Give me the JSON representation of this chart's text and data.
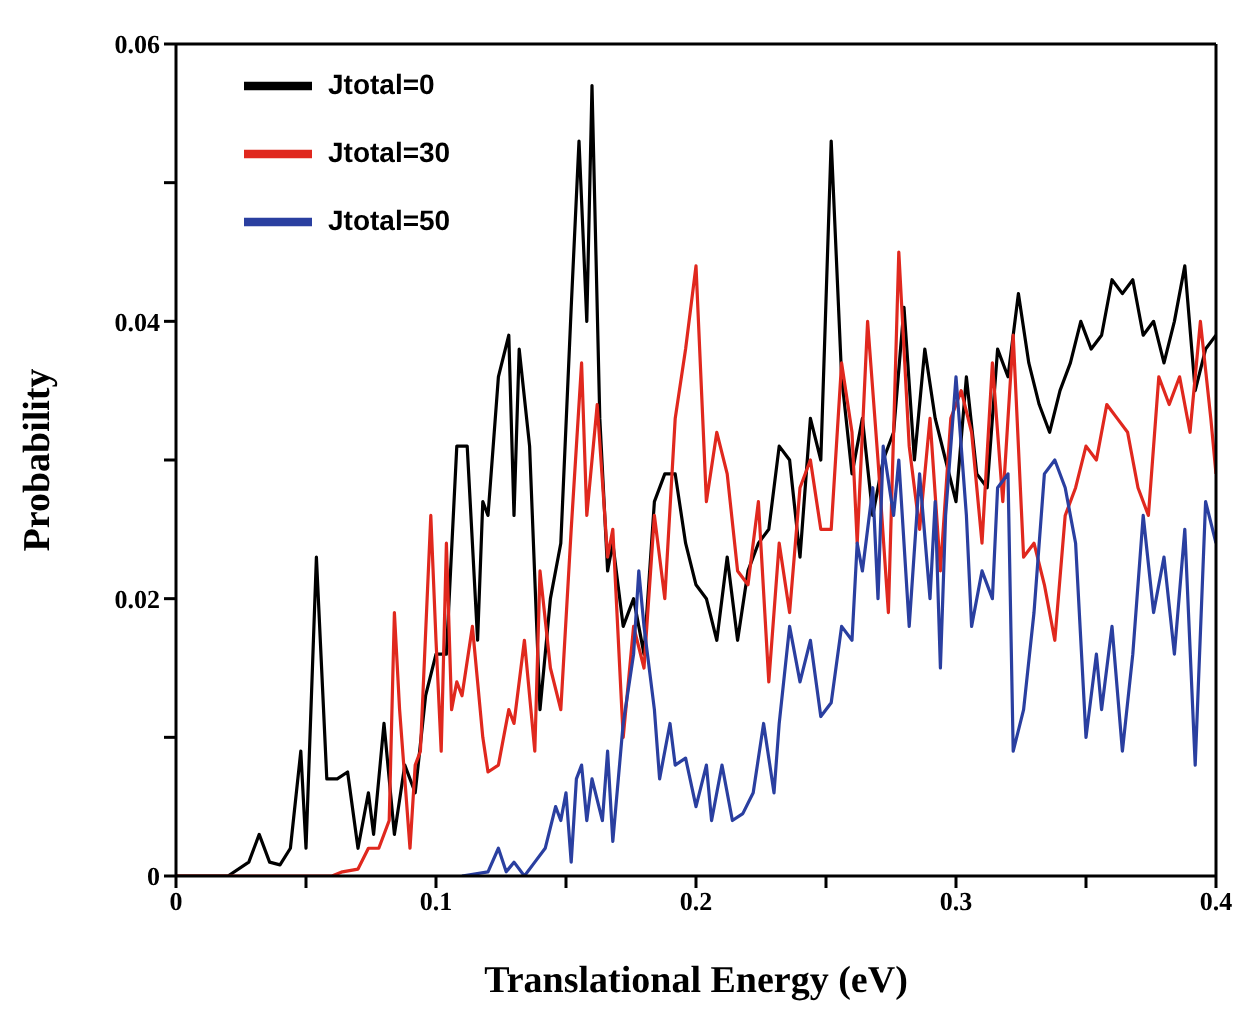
{
  "chart_data": {
    "type": "line",
    "xlabel": "Translational Energy (eV)",
    "ylabel": "Probability",
    "xlim": [
      0,
      0.4
    ],
    "ylim": [
      0,
      0.06
    ],
    "xticks": [
      0,
      {
        "value": 0.05,
        "label": null
      },
      0.1,
      {
        "value": 0.15,
        "label": null
      },
      0.2,
      {
        "value": 0.25,
        "label": null
      },
      0.3,
      {
        "value": 0.35,
        "label": null
      },
      0.4
    ],
    "yticks": [
      0,
      {
        "value": 0.01,
        "label": null
      },
      0.02,
      {
        "value": 0.03,
        "label": null
      },
      0.04,
      {
        "value": 0.05,
        "label": null
      },
      0.06
    ],
    "legend": "top left",
    "grid": false,
    "marker": "none",
    "line_style": "solid",
    "series": [
      {
        "name": "Jtotal=0",
        "color": "#000000",
        "x": [
          0,
          0.02,
          0.028,
          0.032,
          0.036,
          0.04,
          0.044,
          0.048,
          0.05,
          0.054,
          0.058,
          0.062,
          0.066,
          0.07,
          0.074,
          0.076,
          0.08,
          0.084,
          0.088,
          0.092,
          0.096,
          0.1,
          0.104,
          0.108,
          0.112,
          0.116,
          0.118,
          0.12,
          0.124,
          0.128,
          0.13,
          0.132,
          0.136,
          0.14,
          0.144,
          0.148,
          0.152,
          0.155,
          0.158,
          0.16,
          0.163,
          0.166,
          0.168,
          0.172,
          0.176,
          0.18,
          0.184,
          0.188,
          0.192,
          0.196,
          0.2,
          0.204,
          0.208,
          0.212,
          0.216,
          0.22,
          0.224,
          0.228,
          0.232,
          0.236,
          0.24,
          0.244,
          0.248,
          0.252,
          0.256,
          0.26,
          0.264,
          0.268,
          0.272,
          0.276,
          0.28,
          0.284,
          0.288,
          0.292,
          0.296,
          0.3,
          0.304,
          0.308,
          0.312,
          0.316,
          0.32,
          0.324,
          0.328,
          0.332,
          0.336,
          0.34,
          0.344,
          0.348,
          0.352,
          0.356,
          0.36,
          0.364,
          0.368,
          0.372,
          0.376,
          0.38,
          0.384,
          0.388,
          0.392,
          0.396,
          0.4
        ],
        "values": [
          0,
          0,
          0.001,
          0.003,
          0.001,
          0.0008,
          0.002,
          0.009,
          0.002,
          0.023,
          0.007,
          0.007,
          0.0075,
          0.002,
          0.006,
          0.003,
          0.011,
          0.003,
          0.008,
          0.006,
          0.013,
          0.016,
          0.016,
          0.031,
          0.031,
          0.017,
          0.027,
          0.026,
          0.036,
          0.039,
          0.026,
          0.038,
          0.031,
          0.012,
          0.02,
          0.024,
          0.041,
          0.053,
          0.04,
          0.057,
          0.033,
          0.022,
          0.024,
          0.018,
          0.02,
          0.016,
          0.027,
          0.029,
          0.029,
          0.024,
          0.021,
          0.02,
          0.017,
          0.023,
          0.017,
          0.022,
          0.024,
          0.025,
          0.031,
          0.03,
          0.023,
          0.033,
          0.03,
          0.053,
          0.036,
          0.029,
          0.033,
          0.026,
          0.03,
          0.032,
          0.041,
          0.03,
          0.038,
          0.033,
          0.03,
          0.027,
          0.036,
          0.029,
          0.028,
          0.038,
          0.036,
          0.042,
          0.037,
          0.034,
          0.032,
          0.035,
          0.037,
          0.04,
          0.038,
          0.039,
          0.043,
          0.042,
          0.043,
          0.039,
          0.04,
          0.037,
          0.04,
          0.044,
          0.035,
          0.038,
          0.039
        ]
      },
      {
        "name": "Jtotal=30",
        "color": "#e0281e",
        "x": [
          0,
          0.06,
          0.064,
          0.07,
          0.074,
          0.078,
          0.082,
          0.084,
          0.086,
          0.088,
          0.09,
          0.092,
          0.094,
          0.098,
          0.1,
          0.102,
          0.104,
          0.106,
          0.108,
          0.11,
          0.114,
          0.116,
          0.118,
          0.12,
          0.124,
          0.128,
          0.13,
          0.134,
          0.138,
          0.14,
          0.144,
          0.148,
          0.152,
          0.156,
          0.158,
          0.162,
          0.166,
          0.168,
          0.172,
          0.176,
          0.18,
          0.184,
          0.188,
          0.192,
          0.196,
          0.2,
          0.204,
          0.208,
          0.212,
          0.216,
          0.22,
          0.224,
          0.228,
          0.232,
          0.236,
          0.24,
          0.244,
          0.248,
          0.252,
          0.256,
          0.26,
          0.262,
          0.266,
          0.27,
          0.274,
          0.278,
          0.282,
          0.286,
          0.29,
          0.294,
          0.298,
          0.302,
          0.306,
          0.31,
          0.314,
          0.318,
          0.322,
          0.326,
          0.33,
          0.334,
          0.338,
          0.342,
          0.346,
          0.35,
          0.354,
          0.358,
          0.362,
          0.366,
          0.37,
          0.374,
          0.378,
          0.382,
          0.386,
          0.39,
          0.394,
          0.398,
          0.4
        ],
        "values": [
          0,
          0,
          0.0003,
          0.0005,
          0.002,
          0.002,
          0.004,
          0.019,
          0.012,
          0.007,
          0.002,
          0.008,
          0.009,
          0.026,
          0.017,
          0.009,
          0.024,
          0.012,
          0.014,
          0.013,
          0.018,
          0.014,
          0.01,
          0.0075,
          0.008,
          0.012,
          0.011,
          0.017,
          0.009,
          0.022,
          0.015,
          0.012,
          0.025,
          0.037,
          0.026,
          0.034,
          0.023,
          0.025,
          0.01,
          0.018,
          0.015,
          0.026,
          0.02,
          0.033,
          0.038,
          0.044,
          0.027,
          0.032,
          0.029,
          0.022,
          0.021,
          0.027,
          0.014,
          0.024,
          0.019,
          0.028,
          0.03,
          0.025,
          0.025,
          0.037,
          0.032,
          0.024,
          0.04,
          0.03,
          0.019,
          0.045,
          0.031,
          0.025,
          0.033,
          0.022,
          0.033,
          0.035,
          0.032,
          0.024,
          0.037,
          0.027,
          0.039,
          0.023,
          0.024,
          0.021,
          0.017,
          0.026,
          0.028,
          0.031,
          0.03,
          0.034,
          0.033,
          0.032,
          0.028,
          0.026,
          0.036,
          0.034,
          0.036,
          0.032,
          0.04,
          0.033,
          0.029
        ]
      },
      {
        "name": "Jtotal=50",
        "color": "#2a3fa0",
        "x": [
          0.11,
          0.12,
          0.124,
          0.127,
          0.13,
          0.134,
          0.138,
          0.142,
          0.146,
          0.148,
          0.15,
          0.152,
          0.154,
          0.156,
          0.158,
          0.16,
          0.164,
          0.166,
          0.168,
          0.172,
          0.176,
          0.178,
          0.18,
          0.184,
          0.186,
          0.19,
          0.192,
          0.196,
          0.2,
          0.204,
          0.206,
          0.21,
          0.214,
          0.218,
          0.222,
          0.226,
          0.23,
          0.232,
          0.236,
          0.24,
          0.244,
          0.248,
          0.252,
          0.256,
          0.26,
          0.262,
          0.264,
          0.268,
          0.27,
          0.272,
          0.276,
          0.278,
          0.282,
          0.286,
          0.29,
          0.292,
          0.294,
          0.296,
          0.3,
          0.304,
          0.306,
          0.31,
          0.314,
          0.316,
          0.32,
          0.322,
          0.326,
          0.33,
          0.334,
          0.338,
          0.342,
          0.346,
          0.35,
          0.354,
          0.356,
          0.36,
          0.364,
          0.368,
          0.372,
          0.376,
          0.38,
          0.384,
          0.388,
          0.392,
          0.396,
          0.4
        ],
        "values": [
          0,
          0.0003,
          0.002,
          0.0003,
          0.001,
          0,
          0.001,
          0.002,
          0.005,
          0.004,
          0.006,
          0.001,
          0.007,
          0.008,
          0.004,
          0.007,
          0.004,
          0.009,
          0.0025,
          0.011,
          0.016,
          0.022,
          0.018,
          0.012,
          0.007,
          0.011,
          0.008,
          0.0085,
          0.005,
          0.008,
          0.004,
          0.008,
          0.004,
          0.0045,
          0.006,
          0.011,
          0.006,
          0.011,
          0.018,
          0.014,
          0.017,
          0.0115,
          0.0125,
          0.018,
          0.017,
          0.024,
          0.022,
          0.028,
          0.02,
          0.031,
          0.026,
          0.03,
          0.018,
          0.029,
          0.02,
          0.027,
          0.015,
          0.026,
          0.036,
          0.026,
          0.018,
          0.022,
          0.02,
          0.028,
          0.029,
          0.009,
          0.012,
          0.019,
          0.029,
          0.03,
          0.028,
          0.024,
          0.01,
          0.016,
          0.012,
          0.018,
          0.009,
          0.016,
          0.026,
          0.019,
          0.023,
          0.016,
          0.025,
          0.008,
          0.027,
          0.024
        ]
      }
    ]
  }
}
